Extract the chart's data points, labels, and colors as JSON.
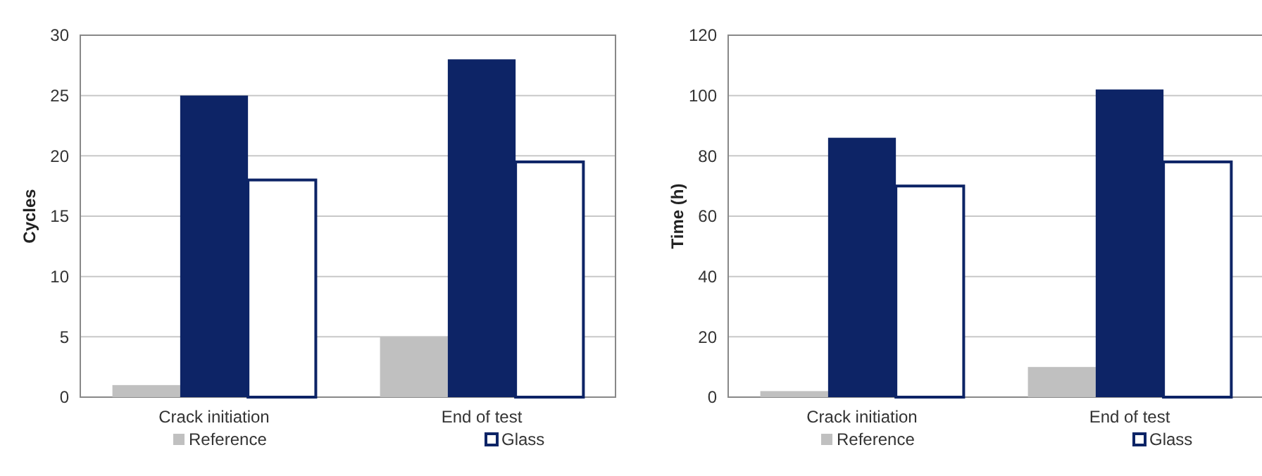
{
  "chart_data": [
    {
      "type": "bar",
      "ylabel": "Cycles",
      "categories": [
        "Crack initiation",
        "End of test"
      ],
      "series": [
        {
          "name": "Reference",
          "color": "#c0c0c0",
          "values": [
            1,
            5
          ]
        },
        {
          "color": "#0d2466",
          "values": [
            25,
            28
          ]
        },
        {
          "name": "Glass",
          "color": "#ffffff",
          "values": [
            18,
            19.5
          ]
        }
      ],
      "ylim": [
        0,
        30
      ],
      "yticks": [
        0,
        5,
        10,
        15,
        20,
        25,
        30
      ],
      "grid": "y",
      "legend": "bottom"
    },
    {
      "type": "bar",
      "ylabel": "Time (h)",
      "categories": [
        "Crack initiation",
        "End of test"
      ],
      "series": [
        {
          "name": "Reference",
          "color": "#c0c0c0",
          "values": [
            2,
            10
          ]
        },
        {
          "color": "#0d2466",
          "values": [
            86,
            102
          ]
        },
        {
          "name": "Glass",
          "color": "#ffffff",
          "values": [
            70,
            78
          ]
        }
      ],
      "ylim": [
        0,
        120
      ],
      "yticks": [
        0,
        20,
        40,
        60,
        80,
        100,
        120
      ],
      "grid": "y",
      "legend": "bottom"
    }
  ]
}
